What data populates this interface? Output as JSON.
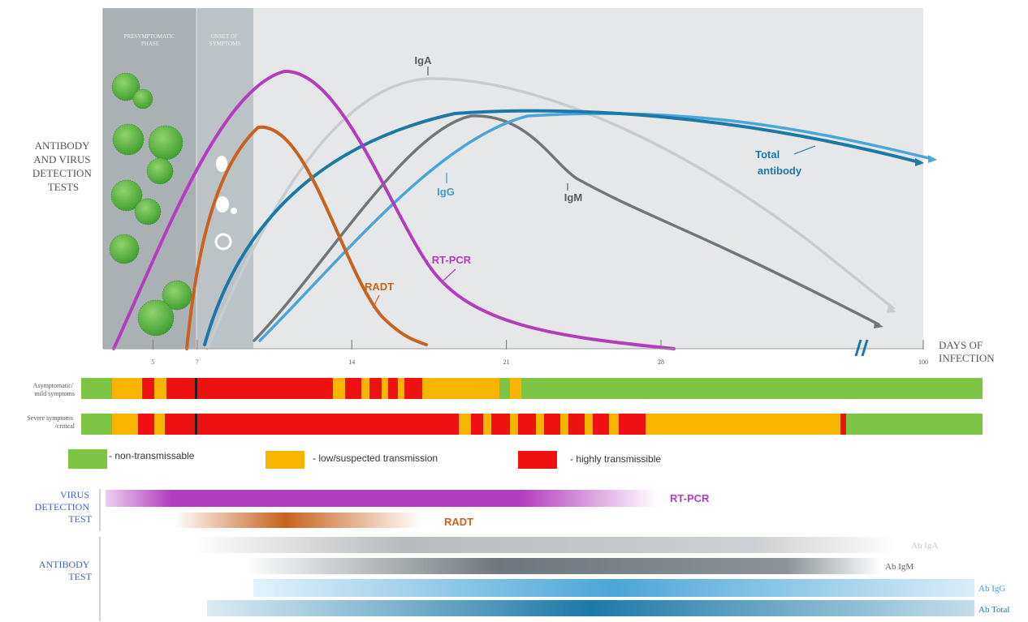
{
  "y_axis_label": [
    "ANTIBODY",
    "AND VIRUS",
    "DETECTION",
    "TESTS"
  ],
  "x_axis_label": [
    "DAYS OF",
    "INFECTION"
  ],
  "x_ticks": [
    {
      "label": "5",
      "day": 5
    },
    {
      "label": "7",
      "day": 7
    },
    {
      "label": "14",
      "day": 14
    },
    {
      "label": "21",
      "day": 21
    },
    {
      "label": "28",
      "day": 28
    },
    {
      "label": "100",
      "day": 100
    }
  ],
  "phases": {
    "presymptomatic": [
      "PRESYMPTOMATIC",
      "PHASE"
    ],
    "onset": [
      "ONSET OF",
      "SYMPTOMS"
    ]
  },
  "curves": {
    "igA": "IgA",
    "igM": "IgM",
    "igG": "IgG",
    "total": [
      "Total",
      "antibody"
    ],
    "rtpcr": "RT-PCR",
    "radt": "RADT"
  },
  "transmission_rows": [
    {
      "label": [
        "Asymptomatic/",
        "mild symptoms"
      ]
    },
    {
      "label": [
        "Severe symptoms",
        "/critical"
      ]
    }
  ],
  "legend": [
    {
      "color": "#7cc444",
      "label": "- non-transmissable"
    },
    {
      "color": "#f7b500",
      "label": "- low/suspected transmission"
    },
    {
      "color": "#ee1111",
      "label": "- highly transmissible"
    }
  ],
  "tests": {
    "virus_label": [
      "VIRUS",
      "DETECTION",
      "TEST"
    ],
    "antibody_label": [
      "ANTIBODY",
      "TEST"
    ],
    "rtpcr": "RT-PCR",
    "radt": "RADT",
    "ab_iga": "Ab IgA",
    "ab_igm": "Ab IgM",
    "ab_igg": "Ab IgG",
    "ab_total": "Ab Total"
  },
  "colors": {
    "rtpcr": "#b23dbd",
    "radt": "#c8621e",
    "iga": "#b8bcbf",
    "igm": "#6f777c",
    "igg": "#4aa6d8",
    "total": "#1b79a8",
    "test_label": "#3f62c8",
    "green": "#7cc444",
    "orange": "#f7b500",
    "red": "#ee1111"
  }
}
